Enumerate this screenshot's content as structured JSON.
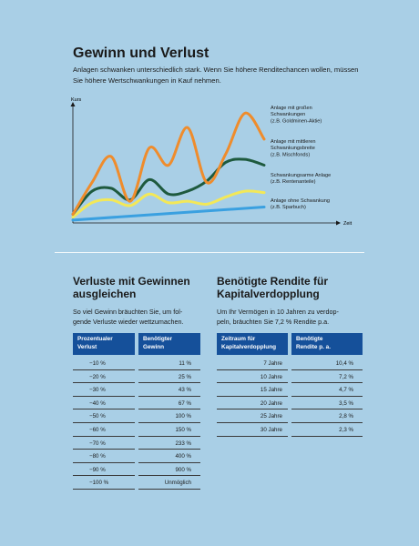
{
  "header": {
    "title": "Gewinn und Verlust",
    "intro": "Anlagen schwanken unterschiedlich stark. Wenn Sie höhere Renditechancen wollen, müssen Sie höhere Wertschwankungen in Kauf nehmen."
  },
  "chart_data": {
    "type": "line",
    "xlabel": "Zeit",
    "ylabel": "Kurs",
    "grid": false,
    "series": [
      {
        "name": "Anlage mit großen Schwankungen (z.B. Goldminen-Aktie)",
        "color": "#ef8c2c",
        "x": [
          0,
          1,
          2,
          3,
          4,
          5,
          6,
          7,
          8,
          9,
          10
        ],
        "values": [
          6,
          28,
          46,
          15,
          52,
          40,
          66,
          28,
          48,
          76,
          58
        ]
      },
      {
        "name": "Anlage mit mittleren Schwankungsbreite (z.B. Mischfonds)",
        "color": "#1e5a3e",
        "x": [
          0,
          1,
          2,
          3,
          4,
          5,
          6,
          7,
          8,
          9,
          10
        ],
        "values": [
          6,
          22,
          24,
          16,
          30,
          20,
          22,
          29,
          42,
          44,
          40
        ]
      },
      {
        "name": "Schwankungsarme Anlage (z.B. Rentenanteile)",
        "color": "#f3e858",
        "x": [
          0,
          1,
          2,
          3,
          4,
          5,
          6,
          7,
          8,
          9,
          10
        ],
        "values": [
          4,
          14,
          16,
          12,
          20,
          14,
          15,
          13,
          18,
          22,
          21
        ]
      },
      {
        "name": "Anlage ohne Schwankung (z.B. Sparbuch)",
        "color": "#3aa0e0",
        "x": [
          0,
          10
        ],
        "values": [
          2,
          11
        ]
      }
    ],
    "legend": [
      {
        "lines": [
          "Anlage mit großen",
          "Schwankungen",
          "(z.B. Goldminen-Aktie)"
        ]
      },
      {
        "lines": [
          "Anlage mit mittleren",
          "Schwankungsbreite",
          "(z.B. Mischfonds)"
        ]
      },
      {
        "lines": [
          "Schwankungsarme Anlage",
          "(z.B. Rentenanteile)"
        ]
      },
      {
        "lines": [
          "Anlage ohne Schwankung",
          "(z.B. Sparbuch)"
        ]
      }
    ]
  },
  "left": {
    "title_line1": "Verluste mit Gewinnen",
    "title_line2": "ausgleichen",
    "text_line1": "So viel Gewinn bräuchten Sie, um fol-",
    "text_line2": "gende Verluste wieder wettzumachen.",
    "col1_line1": "Prozentualer",
    "col1_line2": "Verlust",
    "col2_line1": "Benötigter",
    "col2_line2": "Gewinn",
    "rows": [
      [
        "−10 %",
        "11 %"
      ],
      [
        "−20 %",
        "25 %"
      ],
      [
        "−30 %",
        "43 %"
      ],
      [
        "−40 %",
        "67 %"
      ],
      [
        "−50 %",
        "100 %"
      ],
      [
        "−60 %",
        "150 %"
      ],
      [
        "−70 %",
        "233 %"
      ],
      [
        "−80 %",
        "400 %"
      ],
      [
        "−90 %",
        "900 %"
      ],
      [
        "−100 %",
        "Unmöglich"
      ]
    ]
  },
  "right": {
    "title_line1": "Benötigte Rendite für",
    "title_line2": "Kapitalverdopplung",
    "text_line1": "Um Ihr Vermögen in 10 Jahren zu verdop-",
    "text_line2": "peln, bräuchten Sie 7,2 % Rendite p.a.",
    "col1_line1": "Zeitraum für",
    "col1_line2": "Kapitalverdopplung",
    "col2_line1": "Benötigte",
    "col2_line2": "Rendite p. a.",
    "rows": [
      [
        "7 Jahre",
        "10,4 %"
      ],
      [
        "10 Jahre",
        "7,2 %"
      ],
      [
        "15 Jahre",
        "4,7 %"
      ],
      [
        "20 Jahre",
        "3,5 %"
      ],
      [
        "25 Jahre",
        "2,8 %"
      ],
      [
        "30 Jahre",
        "2,3 %"
      ]
    ]
  }
}
